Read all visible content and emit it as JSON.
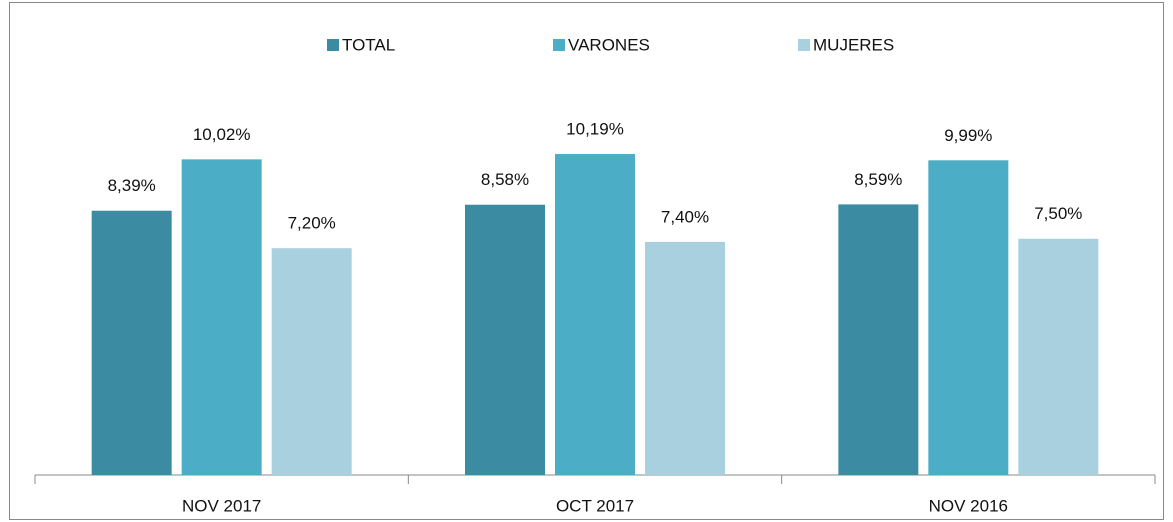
{
  "chart_data": {
    "type": "bar",
    "categories": [
      "NOV 2017",
      "OCT 2017",
      "NOV 2016"
    ],
    "series": [
      {
        "name": "TOTAL",
        "color": "#3b8ba2",
        "values": [
          8.39,
          8.58,
          8.59
        ],
        "value_labels": [
          "8,39%",
          "8,58%",
          "8,59%"
        ]
      },
      {
        "name": "VARONES",
        "color": "#4badc6",
        "values": [
          10.02,
          10.19,
          9.99
        ],
        "value_labels": [
          "10,02%",
          "10,19%",
          "9,99%"
        ]
      },
      {
        "name": "MUJERES",
        "color": "#a9d0de",
        "values": [
          7.2,
          7.4,
          7.5
        ],
        "value_labels": [
          "7,20%",
          "7,40%",
          "7,50%"
        ]
      }
    ],
    "legend": "top"
  }
}
